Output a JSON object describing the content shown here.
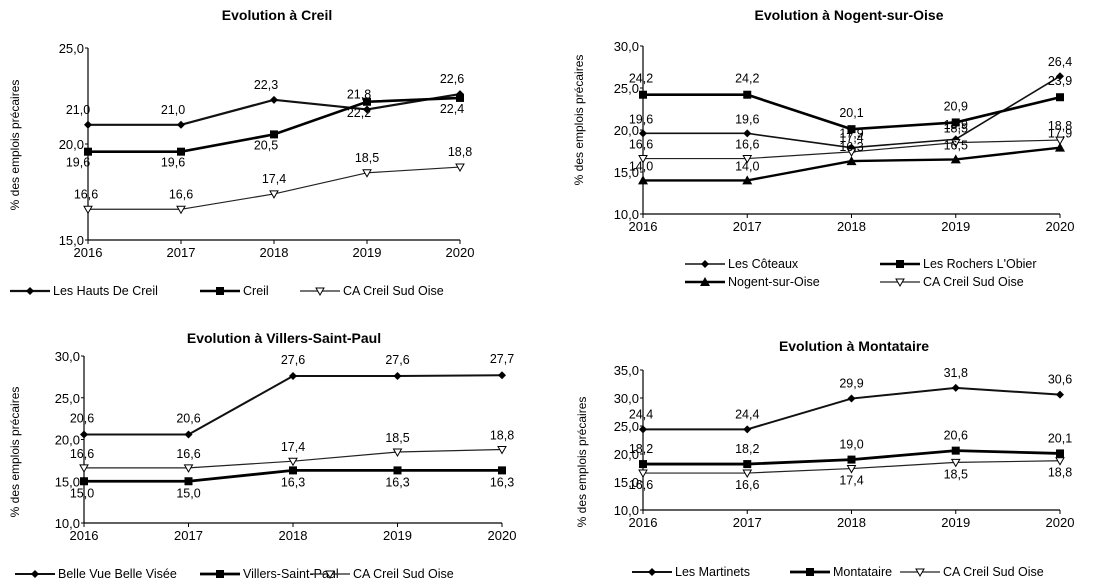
{
  "chart_data": [
    {
      "type": "line",
      "title": "Evolution à Creil",
      "ylabel": "% des emplois précaires",
      "x": [
        "2016",
        "2017",
        "2018",
        "2019",
        "2020"
      ],
      "ylim": [
        15,
        25
      ],
      "yticks": [
        "15,0",
        "20,0",
        "25,0"
      ],
      "series": [
        {
          "name": "Les Hauts De Creil",
          "values": [
            21.0,
            21.0,
            22.3,
            21.8,
            22.6
          ],
          "labels": [
            "21,0",
            "21,0",
            "22,3",
            "21,8",
            "22,6"
          ],
          "marker": "diamond"
        },
        {
          "name": "Creil",
          "values": [
            19.6,
            19.6,
            20.5,
            22.2,
            22.4
          ],
          "labels": [
            "19,6",
            "19,6",
            "20,5",
            "22,2",
            "22,4"
          ],
          "marker": "square"
        },
        {
          "name": "CA Creil Sud Oise",
          "values": [
            16.6,
            16.6,
            17.4,
            18.5,
            18.8
          ],
          "labels": [
            "16,6",
            "16,6",
            "17,4",
            "18,5",
            "18,8"
          ],
          "marker": "open"
        }
      ]
    },
    {
      "type": "line",
      "title": "Evolution à Nogent-sur-Oise",
      "ylabel": "% des emplois précaires",
      "x": [
        "2016",
        "2017",
        "2018",
        "2019",
        "2020"
      ],
      "ylim": [
        10,
        30
      ],
      "yticks": [
        "10,0",
        "15,0",
        "20,0",
        "25,0",
        "30,0"
      ],
      "series": [
        {
          "name": "Les Côteaux",
          "values": [
            19.6,
            19.6,
            17.9,
            18.9,
            26.4
          ],
          "labels": [
            "19,6",
            "19,6",
            "17,9",
            "18,9",
            "26,4"
          ],
          "marker": "diamond"
        },
        {
          "name": "Les Rochers L'Obier",
          "values": [
            24.2,
            24.2,
            20.1,
            20.9,
            23.9
          ],
          "labels": [
            "24,2",
            "24,2",
            "20,1",
            "20,9",
            "23,9"
          ],
          "marker": "square"
        },
        {
          "name": "Nogent-sur-Oise",
          "values": [
            14.0,
            14.0,
            16.3,
            16.5,
            17.9
          ],
          "labels": [
            "14,0",
            "14,0",
            "16,3",
            "16,5",
            "17,9"
          ],
          "marker": "triangle"
        },
        {
          "name": "CA Creil Sud Oise",
          "values": [
            16.6,
            16.6,
            17.4,
            18.5,
            18.8
          ],
          "labels": [
            "16,6",
            "16,6",
            "17,4",
            "18,5",
            "18,8"
          ],
          "marker": "open"
        }
      ]
    },
    {
      "type": "line",
      "title": "Evolution à Villers-Saint-Paul",
      "ylabel": "% des emplois précaires",
      "x": [
        "2016",
        "2017",
        "2018",
        "2019",
        "2020"
      ],
      "ylim": [
        10,
        30
      ],
      "yticks": [
        "10,0",
        "15,0",
        "20,0",
        "25,0",
        "30,0"
      ],
      "series": [
        {
          "name": "Belle Vue Belle Visée",
          "values": [
            20.6,
            20.6,
            27.6,
            27.6,
            27.7
          ],
          "labels": [
            "20,6",
            "20,6",
            "27,6",
            "27,6",
            "27,7"
          ],
          "marker": "diamond"
        },
        {
          "name": "Villers-Saint-Paul",
          "values": [
            15.0,
            15.0,
            16.3,
            16.3,
            16.3
          ],
          "labels": [
            "15,0",
            "15,0",
            "16,3",
            "16,3",
            "16,3"
          ],
          "marker": "square"
        },
        {
          "name": "CA Creil Sud Oise",
          "values": [
            16.6,
            16.6,
            17.4,
            18.5,
            18.8
          ],
          "labels": [
            "16,6",
            "16,6",
            "17,4",
            "18,5",
            "18,8"
          ],
          "marker": "open"
        }
      ]
    },
    {
      "type": "line",
      "title": "Evolution à Montataire",
      "ylabel": "% des emplois précaires",
      "x": [
        "2016",
        "2017",
        "2018",
        "2019",
        "2020"
      ],
      "ylim": [
        10,
        35
      ],
      "yticks": [
        "10,0",
        "15,0",
        "20,0",
        "25,0",
        "30,0",
        "35,0"
      ],
      "series": [
        {
          "name": "Les Martinets",
          "values": [
            24.4,
            24.4,
            29.9,
            31.8,
            30.6
          ],
          "labels": [
            "24,4",
            "24,4",
            "29,9",
            "31,8",
            "30,6"
          ],
          "marker": "diamond"
        },
        {
          "name": "Montataire",
          "values": [
            18.2,
            18.2,
            19.0,
            20.6,
            20.1
          ],
          "labels": [
            "18,2",
            "18,2",
            "19,0",
            "20,6",
            "20,1"
          ],
          "marker": "square"
        },
        {
          "name": "CA Creil Sud Oise",
          "values": [
            16.6,
            16.6,
            17.4,
            18.5,
            18.8
          ],
          "labels": [
            "16,6",
            "16,6",
            "17,4",
            "18,5",
            "18,8"
          ],
          "marker": "open"
        }
      ]
    }
  ]
}
